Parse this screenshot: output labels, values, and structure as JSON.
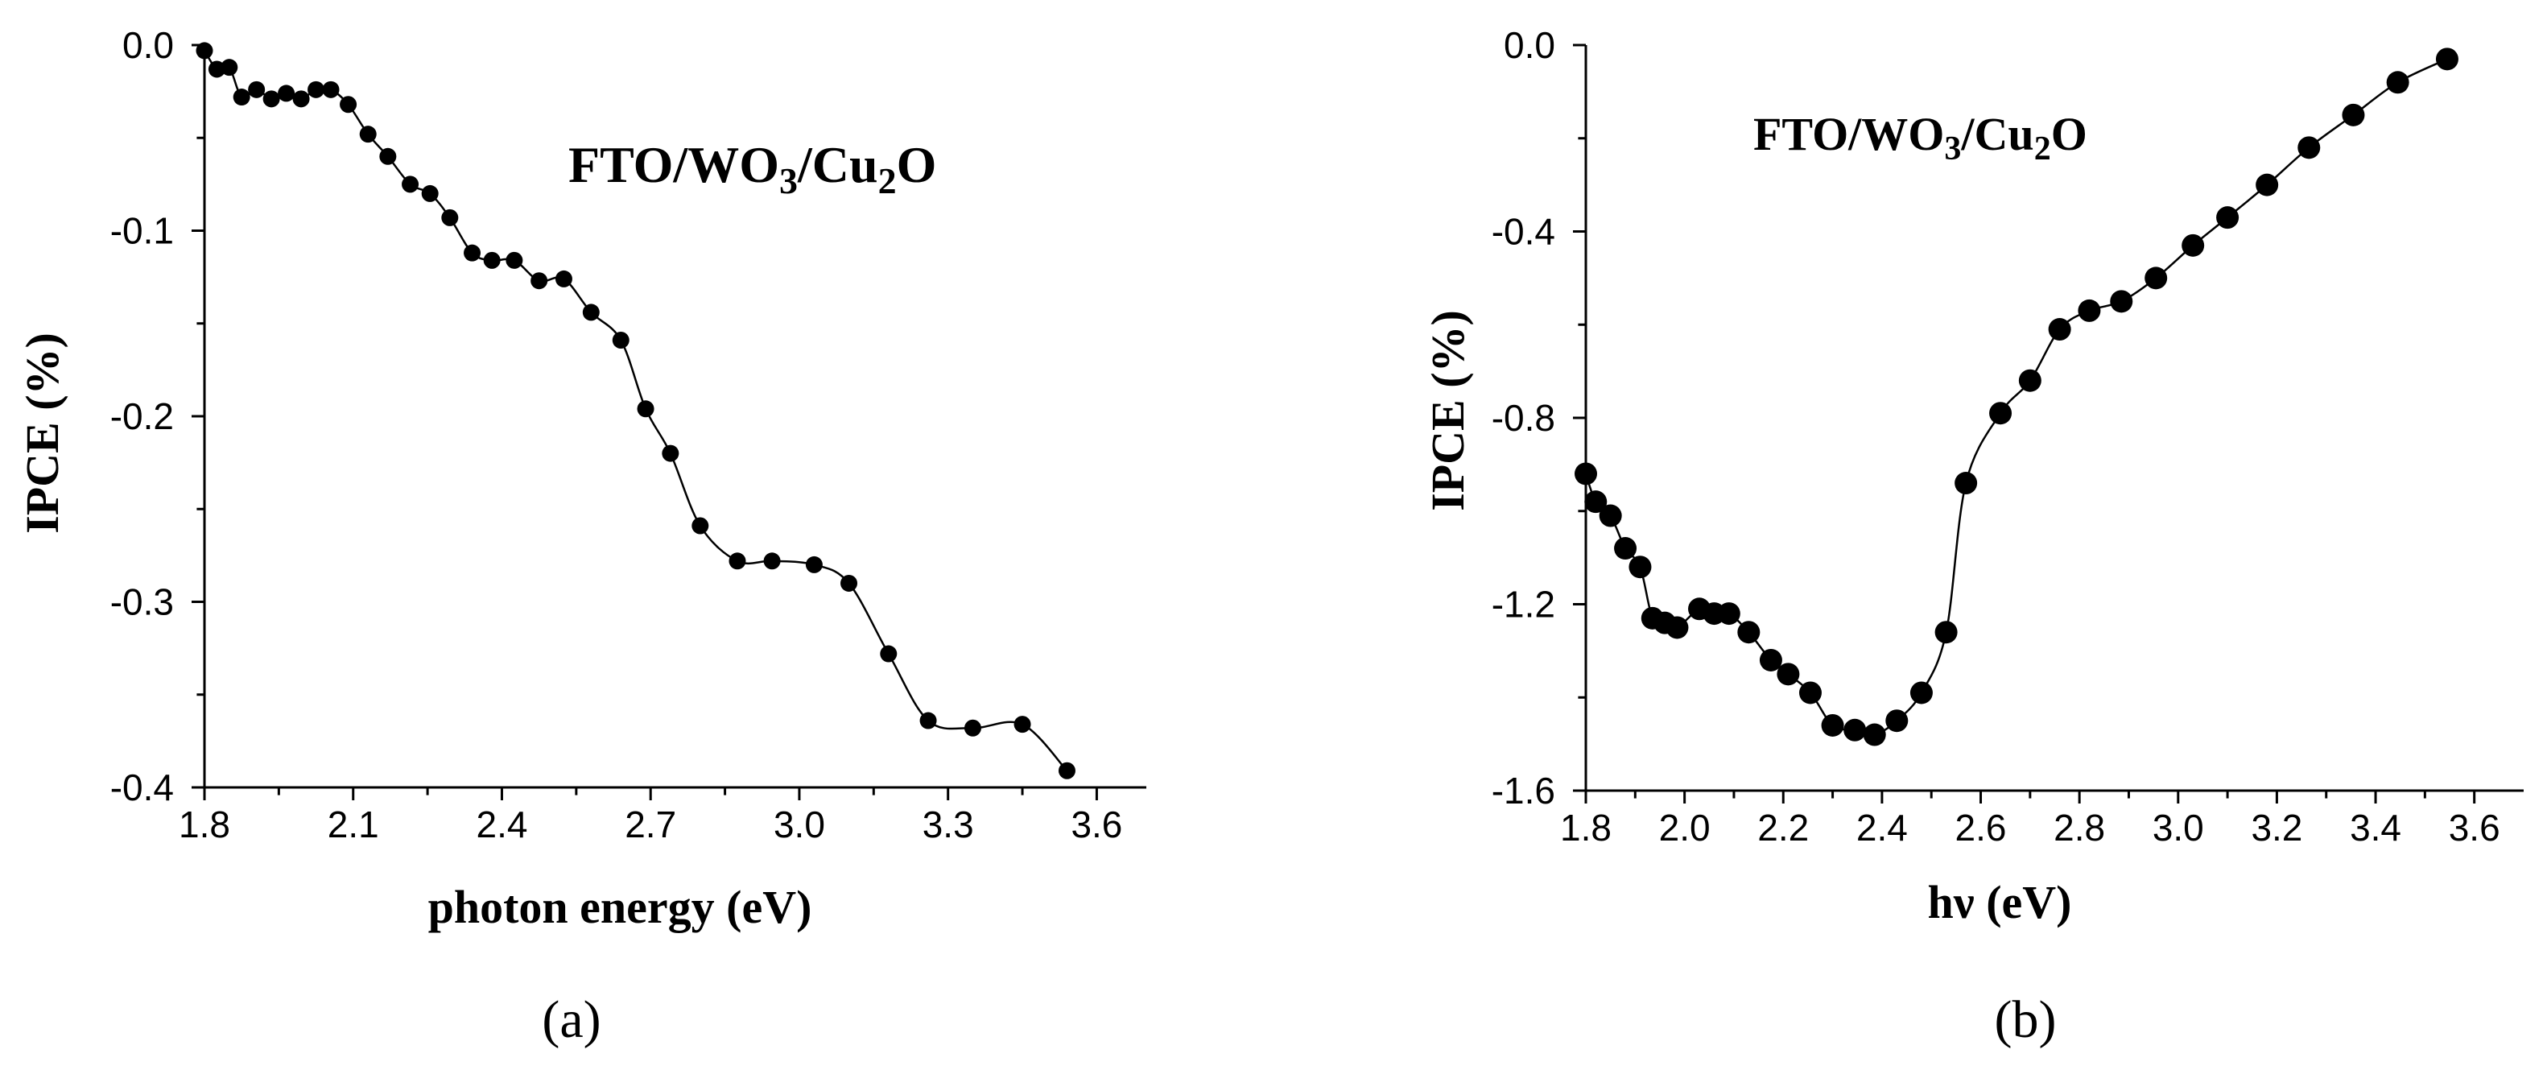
{
  "chart_data": [
    {
      "type": "line",
      "panel_label": "(a)",
      "title": "",
      "annotation": "FTO/WO3/Cu2O",
      "annotation_parts": [
        "FTO/WO",
        "3",
        "/Cu",
        "2",
        "O"
      ],
      "xlabel": "photon energy (eV)",
      "ylabel": "IPCE (%)",
      "xlim": [
        1.8,
        3.7
      ],
      "ylim": [
        -0.4,
        0.0
      ],
      "xticks": [
        1.8,
        2.1,
        2.4,
        2.7,
        3.0,
        3.3,
        3.6
      ],
      "xtick_labels": [
        "1.8",
        "2.1",
        "2.4",
        "2.7",
        "3.0",
        "3.3",
        "3.6"
      ],
      "yticks": [
        0.0,
        -0.1,
        -0.2,
        -0.3,
        -0.4
      ],
      "ytick_labels": [
        "0.0",
        "-0.1",
        "-0.2",
        "-0.3",
        "-0.4"
      ],
      "series": [
        {
          "name": "FTO/WO3/Cu2O",
          "marker": "circle",
          "x": [
            1.8,
            1.825,
            1.85,
            1.875,
            1.905,
            1.935,
            1.965,
            1.995,
            2.025,
            2.055,
            2.09,
            2.13,
            2.17,
            2.215,
            2.255,
            2.295,
            2.34,
            2.38,
            2.425,
            2.475,
            2.525,
            2.58,
            2.64,
            2.69,
            2.74,
            2.8,
            2.875,
            2.945,
            3.03,
            3.1,
            3.18,
            3.26,
            3.35,
            3.45,
            3.54
          ],
          "y": [
            -0.003,
            -0.013,
            -0.012,
            -0.028,
            -0.024,
            -0.029,
            -0.026,
            -0.029,
            -0.024,
            -0.024,
            -0.032,
            -0.048,
            -0.06,
            -0.075,
            -0.08,
            -0.093,
            -0.112,
            -0.116,
            -0.116,
            -0.127,
            -0.126,
            -0.144,
            -0.159,
            -0.196,
            -0.22,
            -0.259,
            -0.278,
            -0.278,
            -0.28,
            -0.29,
            -0.328,
            -0.364,
            -0.368,
            -0.366,
            -0.391
          ]
        }
      ]
    },
    {
      "type": "line",
      "panel_label": "(b)",
      "title": "",
      "annotation": "FTO/WO3/Cu2O",
      "annotation_parts": [
        "FTO/WO",
        "3",
        "/Cu",
        "2",
        "O"
      ],
      "xlabel": "hν (eV)",
      "ylabel": "IPCE (%)",
      "xlim": [
        1.8,
        3.7
      ],
      "ylim": [
        -1.6,
        0.0
      ],
      "xticks": [
        1.8,
        2.0,
        2.2,
        2.4,
        2.6,
        2.8,
        3.0,
        3.2,
        3.4,
        3.6
      ],
      "xtick_labels": [
        "1.8",
        "2.0",
        "2.2",
        "2.4",
        "2.6",
        "2.8",
        "3.0",
        "3.2",
        "3.4",
        "3.6"
      ],
      "yticks": [
        0.0,
        -0.4,
        -0.8,
        -1.2,
        -1.6
      ],
      "ytick_labels": [
        "0.0",
        "-0.4",
        "-0.8",
        "-1.2",
        "-1.6"
      ],
      "series": [
        {
          "name": "FTO/WO3/Cu2O",
          "marker": "circle",
          "x": [
            1.8,
            1.82,
            1.85,
            1.88,
            1.91,
            1.935,
            1.96,
            1.985,
            2.03,
            2.06,
            2.09,
            2.13,
            2.175,
            2.21,
            2.255,
            2.3,
            2.345,
            2.385,
            2.43,
            2.48,
            2.53,
            2.57,
            2.64,
            2.7,
            2.76,
            2.82,
            2.885,
            2.955,
            3.03,
            3.1,
            3.18,
            3.265,
            3.355,
            3.445,
            3.545
          ],
          "y": [
            -0.92,
            -0.98,
            -1.01,
            -1.08,
            -1.12,
            -1.23,
            -1.24,
            -1.25,
            -1.21,
            -1.22,
            -1.22,
            -1.26,
            -1.32,
            -1.35,
            -1.39,
            -1.46,
            -1.47,
            -1.48,
            -1.45,
            -1.39,
            -1.26,
            -0.94,
            -0.79,
            -0.72,
            -0.61,
            -0.57,
            -0.55,
            -0.5,
            -0.43,
            -0.37,
            -0.3,
            -0.22,
            -0.15,
            -0.08,
            -0.03
          ]
        }
      ]
    }
  ]
}
